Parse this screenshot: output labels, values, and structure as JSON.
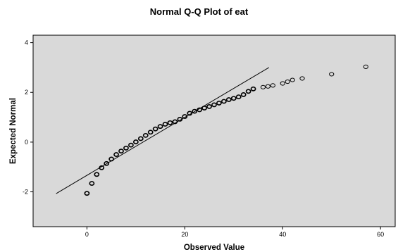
{
  "chart_data": {
    "type": "scatter",
    "title": "Normal Q-Q Plot of eat",
    "xlabel": "Observed Value",
    "ylabel": "Expected Normal",
    "xlim": [
      -11,
      63
    ],
    "ylim": [
      -3.4,
      4.3
    ],
    "x_ticks": [
      0,
      20,
      40,
      60
    ],
    "y_ticks": [
      -2,
      0,
      2,
      4
    ],
    "grid": false,
    "reference_line": {
      "x": [
        -6.3,
        37.2
      ],
      "y": [
        -2.07,
        3.0
      ]
    },
    "points": [
      {
        "x": 0,
        "y": -2.06
      },
      {
        "x": 1,
        "y": -1.66
      },
      {
        "x": 2,
        "y": -1.3
      },
      {
        "x": 3,
        "y": -1.03
      },
      {
        "x": 4,
        "y": -0.86
      },
      {
        "x": 5,
        "y": -0.68
      },
      {
        "x": 6,
        "y": -0.5
      },
      {
        "x": 7,
        "y": -0.36
      },
      {
        "x": 8,
        "y": -0.24
      },
      {
        "x": 9,
        "y": -0.12
      },
      {
        "x": 10,
        "y": 0.01
      },
      {
        "x": 11,
        "y": 0.14
      },
      {
        "x": 12,
        "y": 0.27
      },
      {
        "x": 13,
        "y": 0.4
      },
      {
        "x": 14,
        "y": 0.53
      },
      {
        "x": 15,
        "y": 0.63
      },
      {
        "x": 16,
        "y": 0.72
      },
      {
        "x": 17,
        "y": 0.78
      },
      {
        "x": 18,
        "y": 0.82
      },
      {
        "x": 19,
        "y": 0.92
      },
      {
        "x": 20,
        "y": 1.03
      },
      {
        "x": 21,
        "y": 1.16
      },
      {
        "x": 22,
        "y": 1.24
      },
      {
        "x": 23,
        "y": 1.3
      },
      {
        "x": 24,
        "y": 1.37
      },
      {
        "x": 25,
        "y": 1.43
      },
      {
        "x": 26,
        "y": 1.5
      },
      {
        "x": 27,
        "y": 1.57
      },
      {
        "x": 28,
        "y": 1.64
      },
      {
        "x": 29,
        "y": 1.71
      },
      {
        "x": 30,
        "y": 1.76
      },
      {
        "x": 31,
        "y": 1.82
      },
      {
        "x": 32,
        "y": 1.91
      },
      {
        "x": 33,
        "y": 2.04
      },
      {
        "x": 34,
        "y": 2.14
      },
      {
        "x": 36,
        "y": 2.21
      },
      {
        "x": 37,
        "y": 2.24
      },
      {
        "x": 38,
        "y": 2.28
      },
      {
        "x": 40,
        "y": 2.36
      },
      {
        "x": 41,
        "y": 2.43
      },
      {
        "x": 42,
        "y": 2.5
      },
      {
        "x": 44,
        "y": 2.56
      },
      {
        "x": 50,
        "y": 2.73
      },
      {
        "x": 57,
        "y": 3.03
      }
    ]
  }
}
